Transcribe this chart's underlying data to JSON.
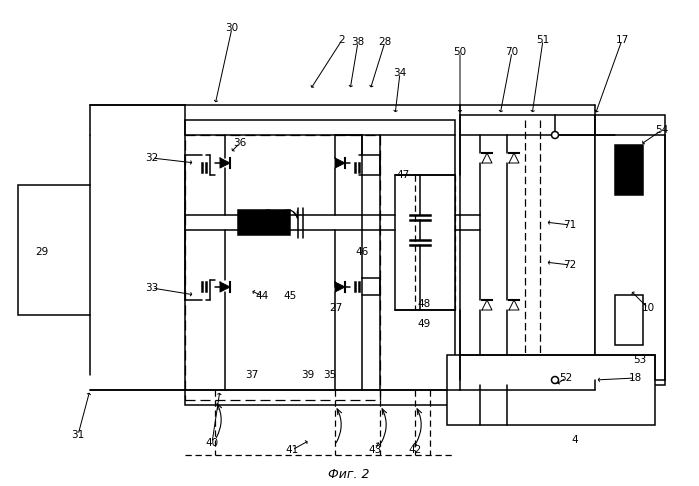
{
  "title": "Фиг. 2",
  "bg": "#ffffff",
  "lc": "#000000",
  "lw": 1.1
}
